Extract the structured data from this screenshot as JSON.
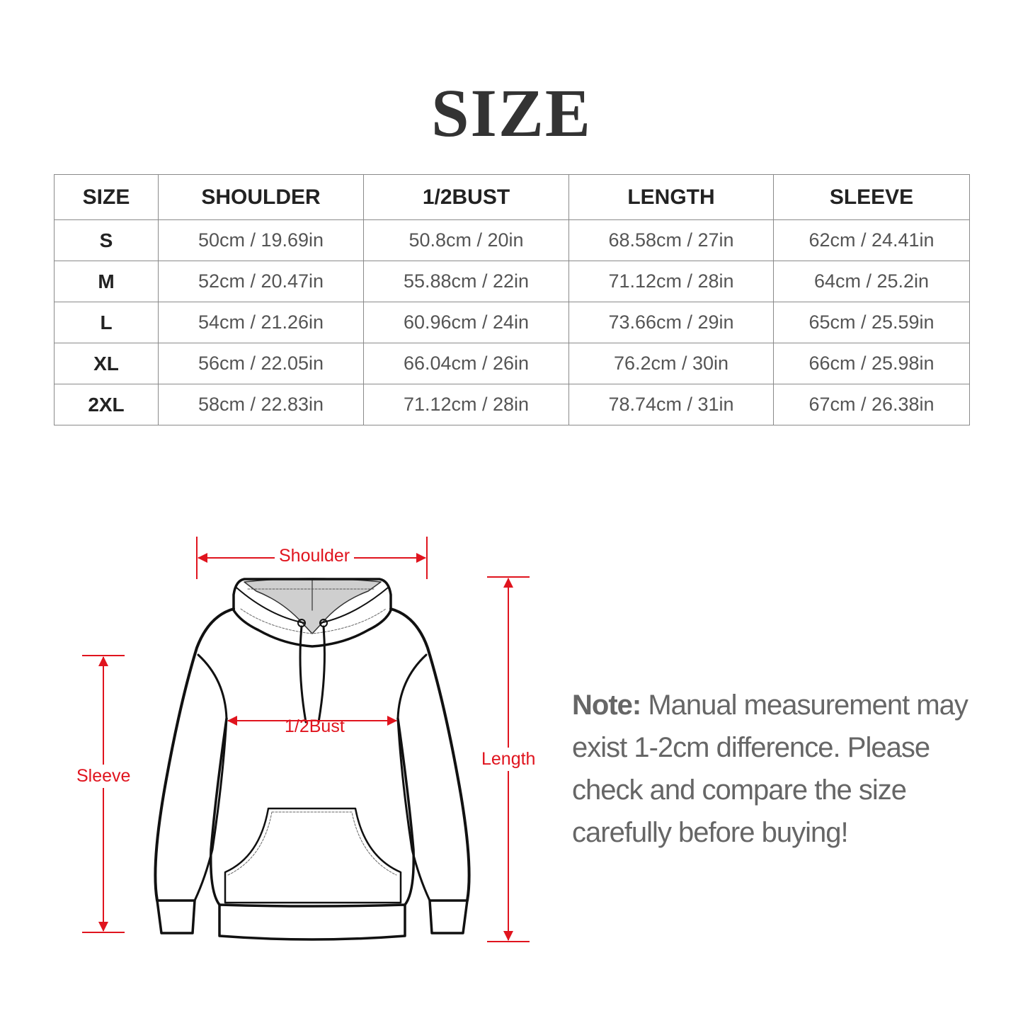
{
  "title": "SIZE",
  "table": {
    "headers": [
      "SIZE",
      "SHOULDER",
      "1/2BUST",
      "LENGTH",
      "SLEEVE"
    ],
    "rows": [
      [
        "S",
        "50cm / 19.69in",
        "50.8cm / 20in",
        "68.58cm / 27in",
        "62cm / 24.41in"
      ],
      [
        "M",
        "52cm / 20.47in",
        "55.88cm / 22in",
        "71.12cm / 28in",
        "64cm / 25.2in"
      ],
      [
        "L",
        "54cm / 21.26in",
        "60.96cm / 24in",
        "73.66cm / 29in",
        "65cm / 25.59in"
      ],
      [
        "XL",
        "56cm / 22.05in",
        "66.04cm / 26in",
        "76.2cm / 30in",
        "66cm / 25.98in"
      ],
      [
        "2XL",
        "58cm / 22.83in",
        "71.12cm / 28in",
        "78.74cm / 31in",
        "67cm / 26.38in"
      ]
    ]
  },
  "diagram": {
    "shoulder_label": "Shoulder",
    "bust_label": "1/2Bust",
    "sleeve_label": "Sleeve",
    "length_label": "Length",
    "measure_color": "#e0141e",
    "illustration": "hoodie-icon"
  },
  "note": {
    "label": "Note:",
    "text": "Manual measurement may exist 1-2cm difference. Please check and compare the size carefully before buying!"
  }
}
